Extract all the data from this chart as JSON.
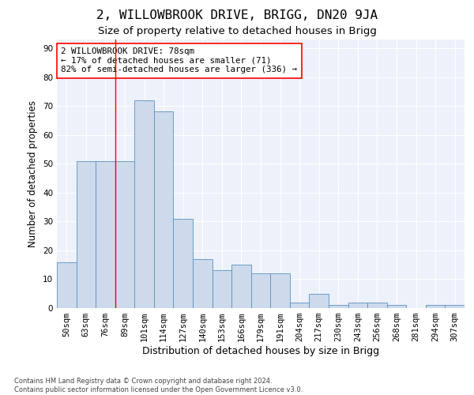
{
  "title": "2, WILLOWBROOK DRIVE, BRIGG, DN20 9JA",
  "subtitle": "Size of property relative to detached houses in Brigg",
  "xlabel": "Distribution of detached houses by size in Brigg",
  "ylabel": "Number of detached properties",
  "bar_labels": [
    "50sqm",
    "63sqm",
    "76sqm",
    "89sqm",
    "101sqm",
    "114sqm",
    "127sqm",
    "140sqm",
    "153sqm",
    "166sqm",
    "179sqm",
    "191sqm",
    "204sqm",
    "217sqm",
    "230sqm",
    "243sqm",
    "256sqm",
    "268sqm",
    "281sqm",
    "294sqm",
    "307sqm"
  ],
  "bar_values": [
    16,
    51,
    51,
    51,
    72,
    68,
    31,
    17,
    13,
    15,
    12,
    12,
    2,
    5,
    1,
    2,
    2,
    1,
    0,
    1,
    1
  ],
  "bar_color": "#cddaeb",
  "bar_edge_color": "#5a8fc0",
  "red_line_x": 2.5,
  "annotation_line1": "2 WILLOWBROOK DRIVE: 78sqm",
  "annotation_line2": "← 17% of detached houses are smaller (71)",
  "annotation_line3": "82% of semi-detached houses are larger (336) →",
  "annotation_box_color": "white",
  "annotation_box_edge": "red",
  "ylim": [
    0,
    93
  ],
  "yticks": [
    0,
    10,
    20,
    30,
    40,
    50,
    60,
    70,
    80,
    90
  ],
  "footer_line1": "Contains HM Land Registry data © Crown copyright and database right 2024.",
  "footer_line2": "Contains public sector information licensed under the Open Government Licence v3.0.",
  "background_color": "#edf1f9",
  "title_fontsize": 11.5,
  "subtitle_fontsize": 9.5,
  "tick_fontsize": 7.5,
  "xlabel_fontsize": 9,
  "ylabel_fontsize": 8.5,
  "annotation_fontsize": 7.8,
  "footer_fontsize": 6.0
}
